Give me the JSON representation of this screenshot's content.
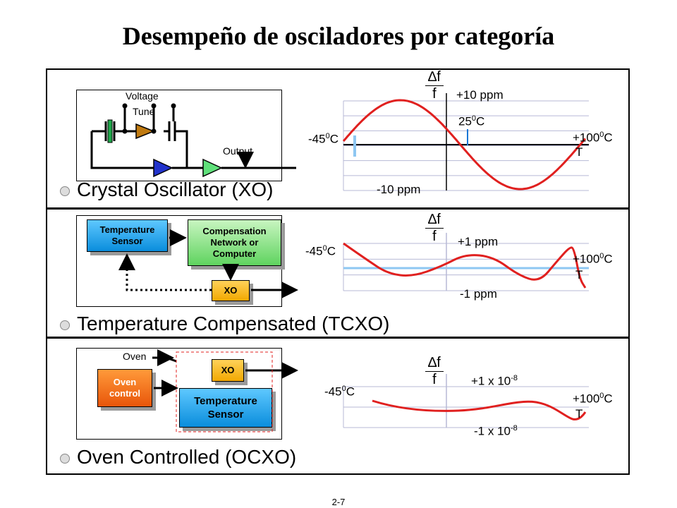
{
  "title": "Desempeño de osciladores por categoría",
  "page_number": "2-7",
  "sections": [
    {
      "label": "Crystal Oscillator (XO)",
      "circuit": {
        "voltage_tune": [
          "Voltage",
          "Tune"
        ],
        "output": "Output"
      },
      "chart": {
        "top": "+10 ppm",
        "bottom": "-10 ppm",
        "mid": "25",
        "mid_unit": "C",
        "left": "-45",
        "left_unit": "C",
        "right": "+100",
        "right_unit": "C",
        "t_label": "T",
        "df": "∆f",
        "f": "f"
      }
    },
    {
      "label": "Temperature Compensated (TCXO)",
      "circuit": {
        "sensor": [
          "Temperature",
          "Sensor"
        ],
        "network": [
          "Compensation",
          "Network or",
          "Computer"
        ],
        "xo": "XO"
      },
      "chart": {
        "top": "+1 ppm",
        "bottom": "-1 ppm",
        "left": "-45",
        "left_unit": "C",
        "right": "+100",
        "right_unit": "C",
        "t_label": "T",
        "df": "∆f",
        "f": "f"
      }
    },
    {
      "label": "Oven Controlled (OCXO)",
      "circuit": {
        "oven": "Oven",
        "oven_control": [
          "Oven",
          "control"
        ],
        "xo": "XO",
        "sensor": [
          "Temperature",
          "Sensor"
        ]
      },
      "chart": {
        "top": "+1 x 10",
        "top_exp": "-8",
        "bottom": "-1 x 10",
        "bottom_exp": "-8",
        "left": "-45",
        "left_unit": "C",
        "right": "+100",
        "right_unit": "C",
        "t_label": "T",
        "df": "∆f",
        "f": "f"
      }
    }
  ],
  "colors": {
    "curve": "#e0201f",
    "grid": "#b7b9d6"
  }
}
